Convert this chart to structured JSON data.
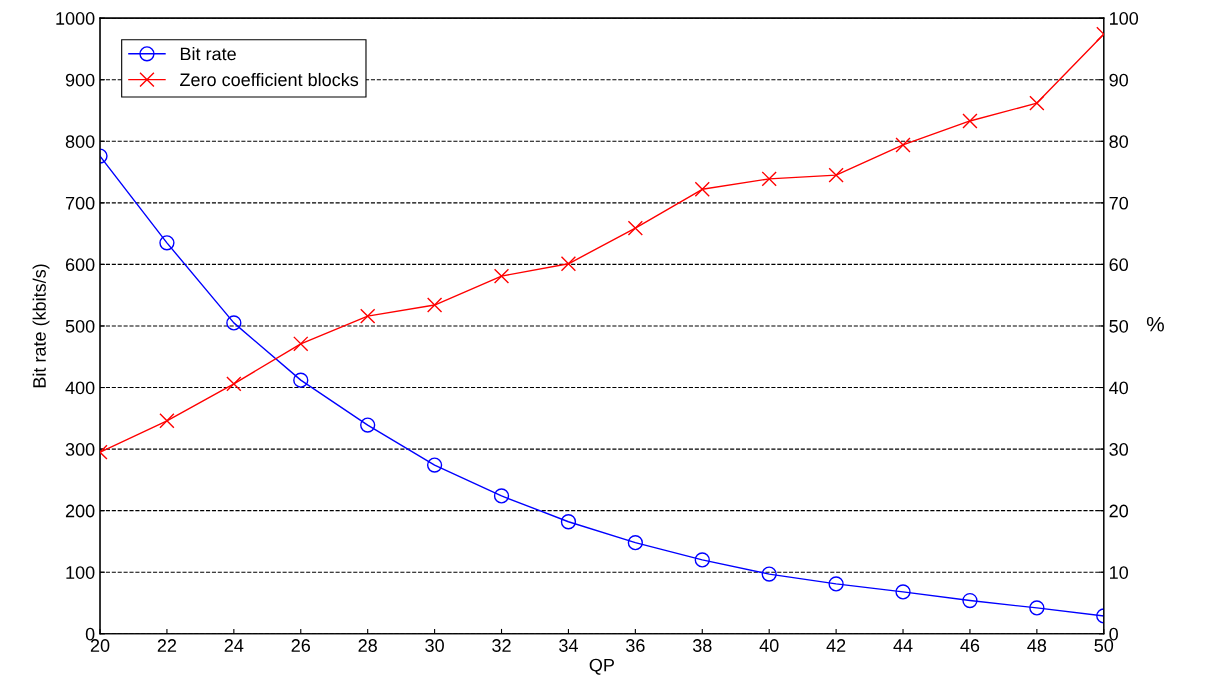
{
  "chart_data": {
    "type": "line",
    "xlabel": "QP",
    "ylabel": "Bit rate (kbits/s)",
    "y2label": "%",
    "x": [
      20,
      22,
      24,
      26,
      28,
      30,
      32,
      34,
      36,
      38,
      40,
      42,
      44,
      46,
      48,
      50
    ],
    "series": [
      {
        "name": "Bit rate",
        "color": "#0000ff",
        "marker": "circle",
        "values": [
          776,
          635,
          505,
          412,
          339,
          274,
          224,
          182,
          148,
          120,
          97,
          81,
          68,
          54,
          42,
          29
        ]
      },
      {
        "name": "Zero coefficient blocks",
        "color": "#ff0000",
        "marker": "cross",
        "axis": "y2",
        "values": [
          29.5,
          34.6,
          40.6,
          47.1,
          51.6,
          53.4,
          58.1,
          60.1,
          65.9,
          72.2,
          73.9,
          74.5,
          79.4,
          83.3,
          86.2,
          97.4
        ]
      }
    ],
    "xlim": [
      20,
      50
    ],
    "xticks": [
      20,
      22,
      24,
      26,
      28,
      30,
      32,
      34,
      36,
      38,
      40,
      42,
      44,
      46,
      48,
      50
    ],
    "ylim": [
      0,
      1000
    ],
    "yticks": [
      0,
      100,
      200,
      300,
      400,
      500,
      600,
      700,
      800,
      900,
      1000
    ],
    "y2lim": [
      0,
      100
    ],
    "y2ticks": [
      0,
      10,
      20,
      30,
      40,
      50,
      60,
      70,
      80,
      90,
      100
    ],
    "grid": "y",
    "legend": "top left",
    "line_style": "solid"
  }
}
